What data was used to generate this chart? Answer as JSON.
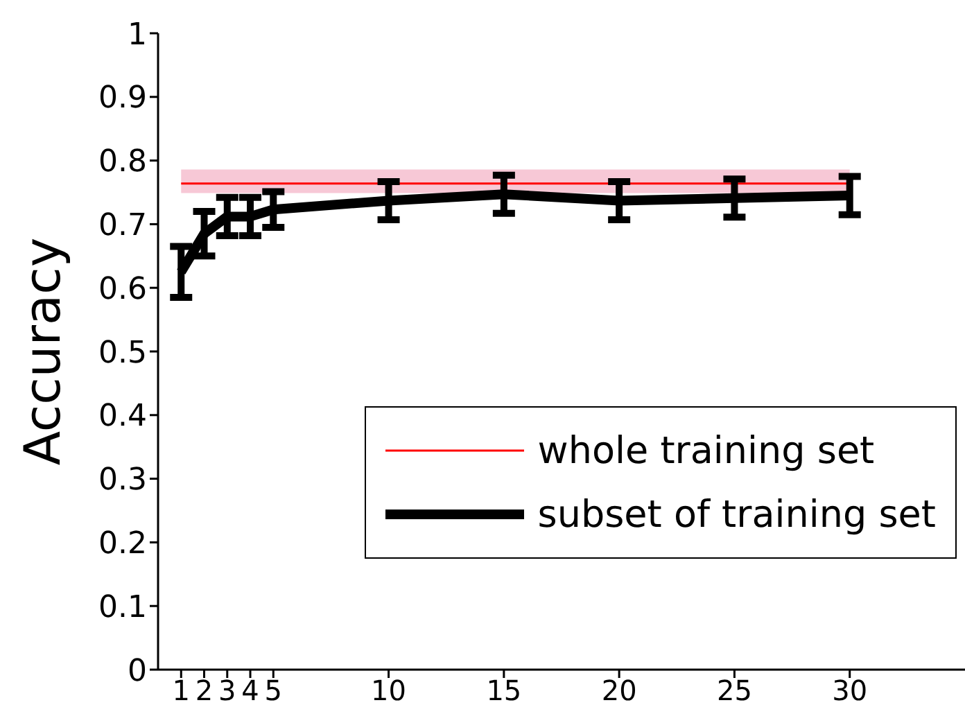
{
  "chart_data": {
    "type": "line",
    "ylabel": "Accuracy",
    "xlim": [
      0,
      35
    ],
    "xticks": [
      1,
      2,
      3,
      4,
      5,
      10,
      15,
      20,
      25,
      30
    ],
    "ylim": [
      0,
      1
    ],
    "yticks": [
      0,
      0.1,
      0.2,
      0.3,
      0.4,
      0.5,
      0.6,
      0.7,
      0.8,
      0.9,
      1
    ],
    "grid": false,
    "legend": "bottom right",
    "marker": "none",
    "line_style": "solid",
    "series": [
      {
        "name": "whole training set",
        "color": "#ff0000",
        "x": [
          1,
          30
        ],
        "values": [
          0.764,
          0.764
        ],
        "lower": [
          0.749,
          0.749
        ],
        "upper": [
          0.786,
          0.786
        ]
      },
      {
        "name": "subset of training set",
        "color": "#000000",
        "x": [
          1,
          2,
          3,
          4,
          5,
          10,
          15,
          20,
          25,
          30
        ],
        "values": [
          0.625,
          0.685,
          0.712,
          0.712,
          0.723,
          0.737,
          0.747,
          0.737,
          0.741,
          0.745
        ],
        "errors": [
          0.04,
          0.035,
          0.03,
          0.03,
          0.028,
          0.03,
          0.03,
          0.03,
          0.03,
          0.03
        ]
      }
    ]
  }
}
